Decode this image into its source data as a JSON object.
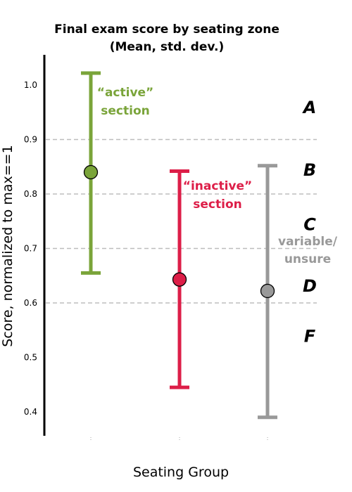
{
  "chart_data": {
    "type": "errorbar",
    "title_line1": "Final exam score by seating zone",
    "title_line2": "(Mean, std. dev.)",
    "xlabel": "Seating Group",
    "ylabel": "Score, normalized to max==1",
    "ylim": [
      0.37,
      1.05
    ],
    "yticks": [
      "0.4",
      "0.5",
      "0.6",
      "0.7",
      "0.8",
      "0.9",
      "1.0"
    ],
    "grid": "horizontal dashed at grade thresholds",
    "grade_thresholds": [
      0.6,
      0.7,
      0.8,
      0.9
    ],
    "series": [
      {
        "mean": 0.84,
        "low": 0.655,
        "high": 1.022,
        "color": "#7aa43a",
        "label_line1": "“active”",
        "label_line2": "section"
      },
      {
        "mean": 0.643,
        "low": 0.445,
        "high": 0.842,
        "color": "#dd1e48",
        "label_line1": "“inactive”",
        "label_line2": "section"
      },
      {
        "mean": 0.622,
        "low": 0.39,
        "high": 0.852,
        "color": "#999999",
        "label_line1": "variable/",
        "label_line2": "unsure"
      }
    ],
    "grades": [
      {
        "letter": "A",
        "y": 0.96
      },
      {
        "letter": "B",
        "y": 0.845
      },
      {
        "letter": "C",
        "y": 0.745
      },
      {
        "letter": "D",
        "y": 0.632
      },
      {
        "letter": "F",
        "y": 0.54
      }
    ]
  }
}
